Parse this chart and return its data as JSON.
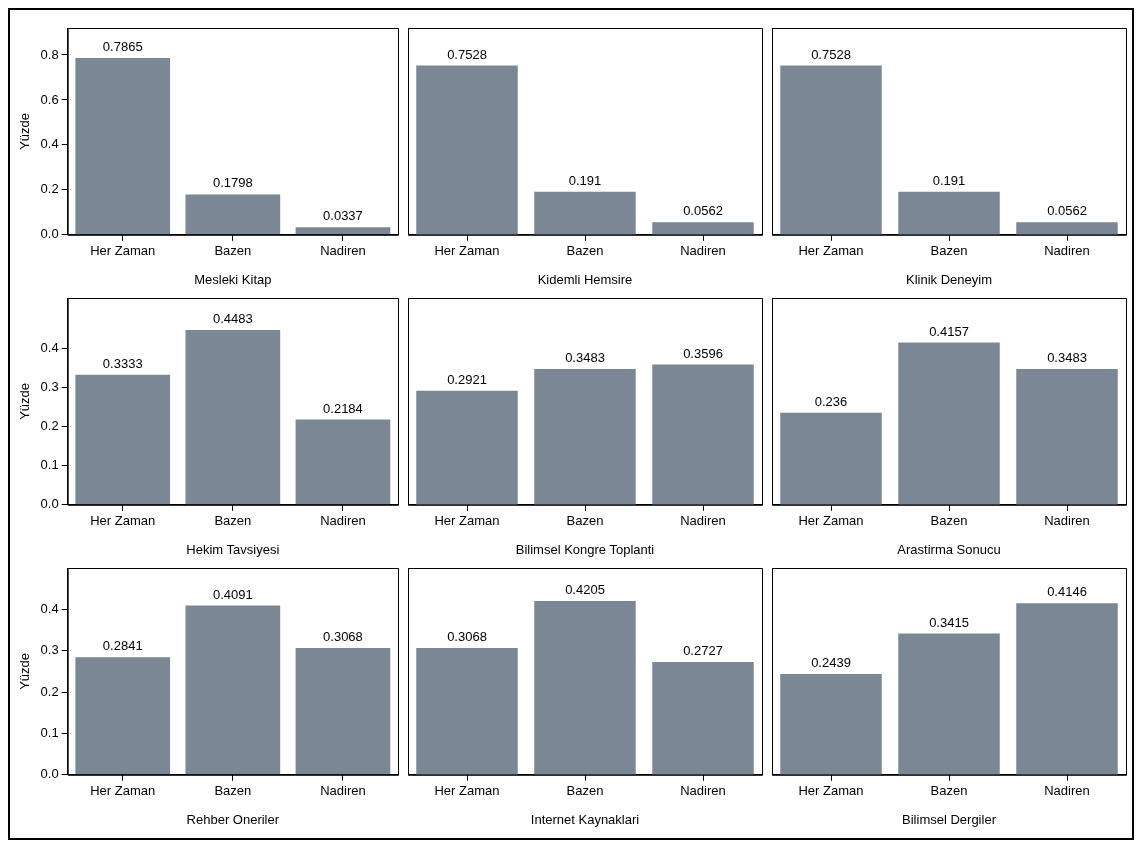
{
  "chart_data": [
    {
      "type": "bar",
      "xlabel": "Mesleki Kitap",
      "ylabel": "Yüzde",
      "categories": [
        "Her Zaman",
        "Bazen",
        "Nadiren"
      ],
      "values": [
        0.7865,
        0.1798,
        0.0337
      ],
      "color": "#7b8794",
      "ylim": [
        0,
        0.92
      ],
      "yticks": [
        {
          "value": 0,
          "label": "0.0"
        },
        {
          "value": 0.2,
          "label": "0.2"
        },
        {
          "value": 0.4,
          "label": "0.4"
        },
        {
          "value": 0.6,
          "label": "0.6"
        },
        {
          "value": 0.8,
          "label": "0.8"
        }
      ],
      "data_labels": true
    },
    {
      "type": "bar",
      "xlabel": "Kidemli Hemsire",
      "categories": [
        "Her Zaman",
        "Bazen",
        "Nadiren"
      ],
      "values": [
        0.7528,
        0.191,
        0.0562
      ],
      "color": "#7b8794",
      "ylim": [
        0,
        0.92
      ],
      "yticks": [
        0,
        0.2,
        0.4,
        0.6,
        0.8
      ],
      "data_labels": true,
      "tick_labels": "x"
    },
    {
      "type": "bar",
      "xlabel": "Klinik Deneyim",
      "categories": [
        "Her Zaman",
        "Bazen",
        "Nadiren"
      ],
      "values": [
        0.7528,
        0.191,
        0.0562
      ],
      "color": "#7b8794",
      "ylim": [
        0,
        0.92
      ],
      "yticks": [
        0,
        0.2,
        0.4,
        0.6,
        0.8
      ],
      "data_labels": true,
      "tick_labels": "x"
    },
    {
      "type": "bar",
      "xlabel": "Hekim Tavsiyesi",
      "ylabel": "Yüzde",
      "categories": [
        "Her Zaman",
        "Bazen",
        "Nadiren"
      ],
      "values": [
        0.3333,
        0.4483,
        0.2184
      ],
      "color": "#7b8794",
      "ylim": [
        0,
        0.53
      ],
      "yticks": [
        {
          "value": 0,
          "label": "0.0"
        },
        0.1,
        0.2,
        0.3,
        0.4
      ],
      "data_labels": true
    },
    {
      "type": "bar",
      "xlabel": "Bilimsel Kongre Toplanti",
      "categories": [
        "Her Zaman",
        "Bazen",
        "Nadiren"
      ],
      "values": [
        0.2921,
        0.3483,
        0.3596
      ],
      "color": "#7b8794",
      "ylim": [
        0,
        0.53
      ],
      "yticks": [
        0,
        0.1,
        0.2,
        0.3,
        0.4
      ],
      "data_labels": true,
      "tick_labels": "x"
    },
    {
      "type": "bar",
      "xlabel": "Arastirma Sonucu",
      "categories": [
        "Her Zaman",
        "Bazen",
        "Nadiren"
      ],
      "values": [
        0.236,
        0.4157,
        0.3483
      ],
      "color": "#7b8794",
      "ylim": [
        0,
        0.53
      ],
      "yticks": [
        0,
        0.1,
        0.2,
        0.3,
        0.4
      ],
      "data_labels": true,
      "tick_labels": "x"
    },
    {
      "type": "bar",
      "xlabel": "Rehber Oneriler",
      "ylabel": "Yüzde",
      "categories": [
        "Her Zaman",
        "Bazen",
        "Nadiren"
      ],
      "values": [
        0.2841,
        0.4091,
        0.3068
      ],
      "color": "#7b8794",
      "ylim": [
        0,
        0.5
      ],
      "yticks": [
        {
          "value": 0,
          "label": "0.0"
        },
        0.1,
        0.2,
        0.3,
        0.4
      ],
      "data_labels": true
    },
    {
      "type": "bar",
      "xlabel": "Internet Kaynaklari",
      "categories": [
        "Her Zaman",
        "Bazen",
        "Nadiren"
      ],
      "values": [
        0.3068,
        0.4205,
        0.2727
      ],
      "color": "#7b8794",
      "ylim": [
        0,
        0.5
      ],
      "yticks": [
        0,
        0.1,
        0.2,
        0.3,
        0.4
      ],
      "data_labels": true,
      "tick_labels": "x"
    },
    {
      "type": "bar",
      "xlabel": "Bilimsel Dergiler",
      "categories": [
        "Her Zaman",
        "Bazen",
        "Nadiren"
      ],
      "values": [
        0.2439,
        0.3415,
        0.4146
      ],
      "color": "#7b8794",
      "ylim": [
        0,
        0.5
      ],
      "yticks": [
        0,
        0.1,
        0.2,
        0.3,
        0.4
      ],
      "data_labels": true,
      "tick_labels": "x"
    }
  ]
}
